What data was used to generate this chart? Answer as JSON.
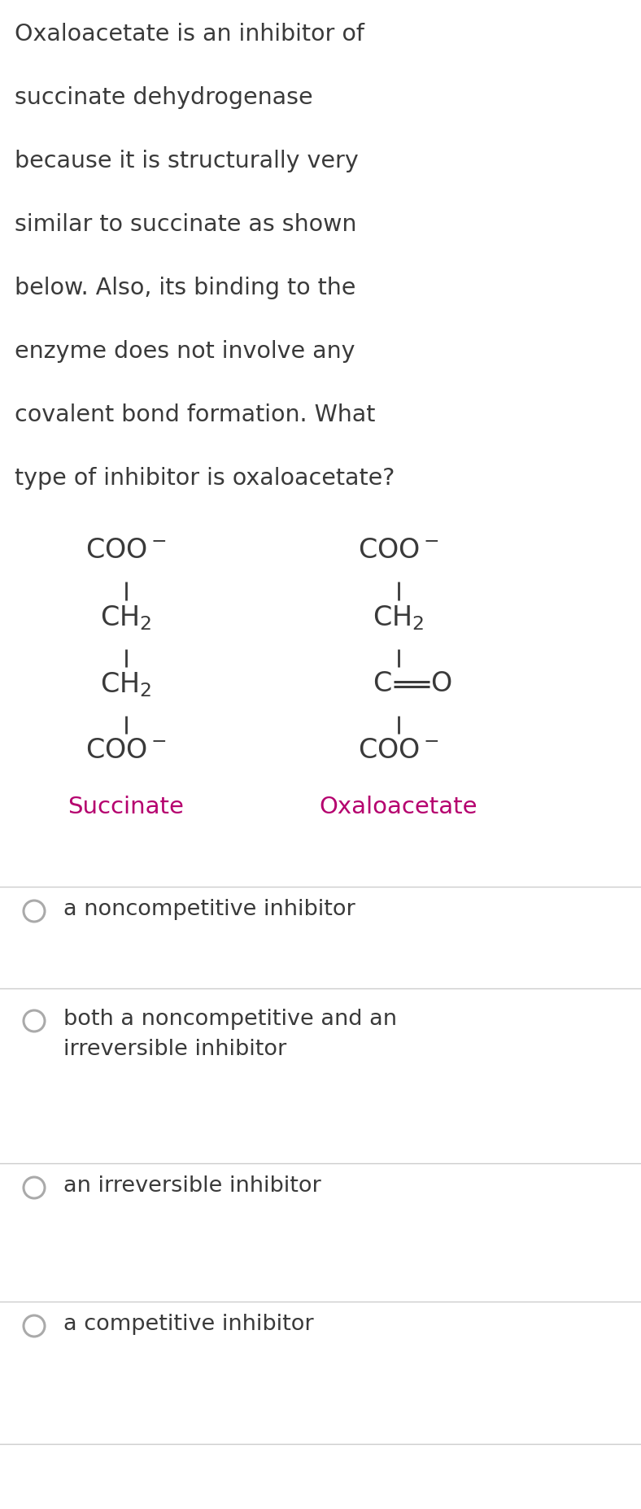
{
  "background_color": "#ffffff",
  "text_color": "#3a3a3a",
  "label_color": "#b5006e",
  "question_lines": [
    "Oxaloacetate is an inhibitor of",
    "succinate dehydrogenase",
    "because it is structurally very",
    "similar to succinate as shown",
    "below. Also, its binding to the",
    "enzyme does not involve any",
    "covalent bond formation. What",
    "type of inhibitor is oxaloacetate?"
  ],
  "succinate_label": "Succinate",
  "oxaloacetate_label": "Oxaloacetate",
  "options": [
    "a noncompetitive inhibitor",
    "both a noncompetitive and an\nirreversible inhibitor",
    "an irreversible inhibitor",
    "a competitive inhibitor"
  ],
  "divider_color": "#cccccc",
  "circle_color": "#aaaaaa",
  "question_fontsize": 20.5,
  "structure_fontsize": 24,
  "label_fontsize": 21,
  "option_fontsize": 19.5
}
